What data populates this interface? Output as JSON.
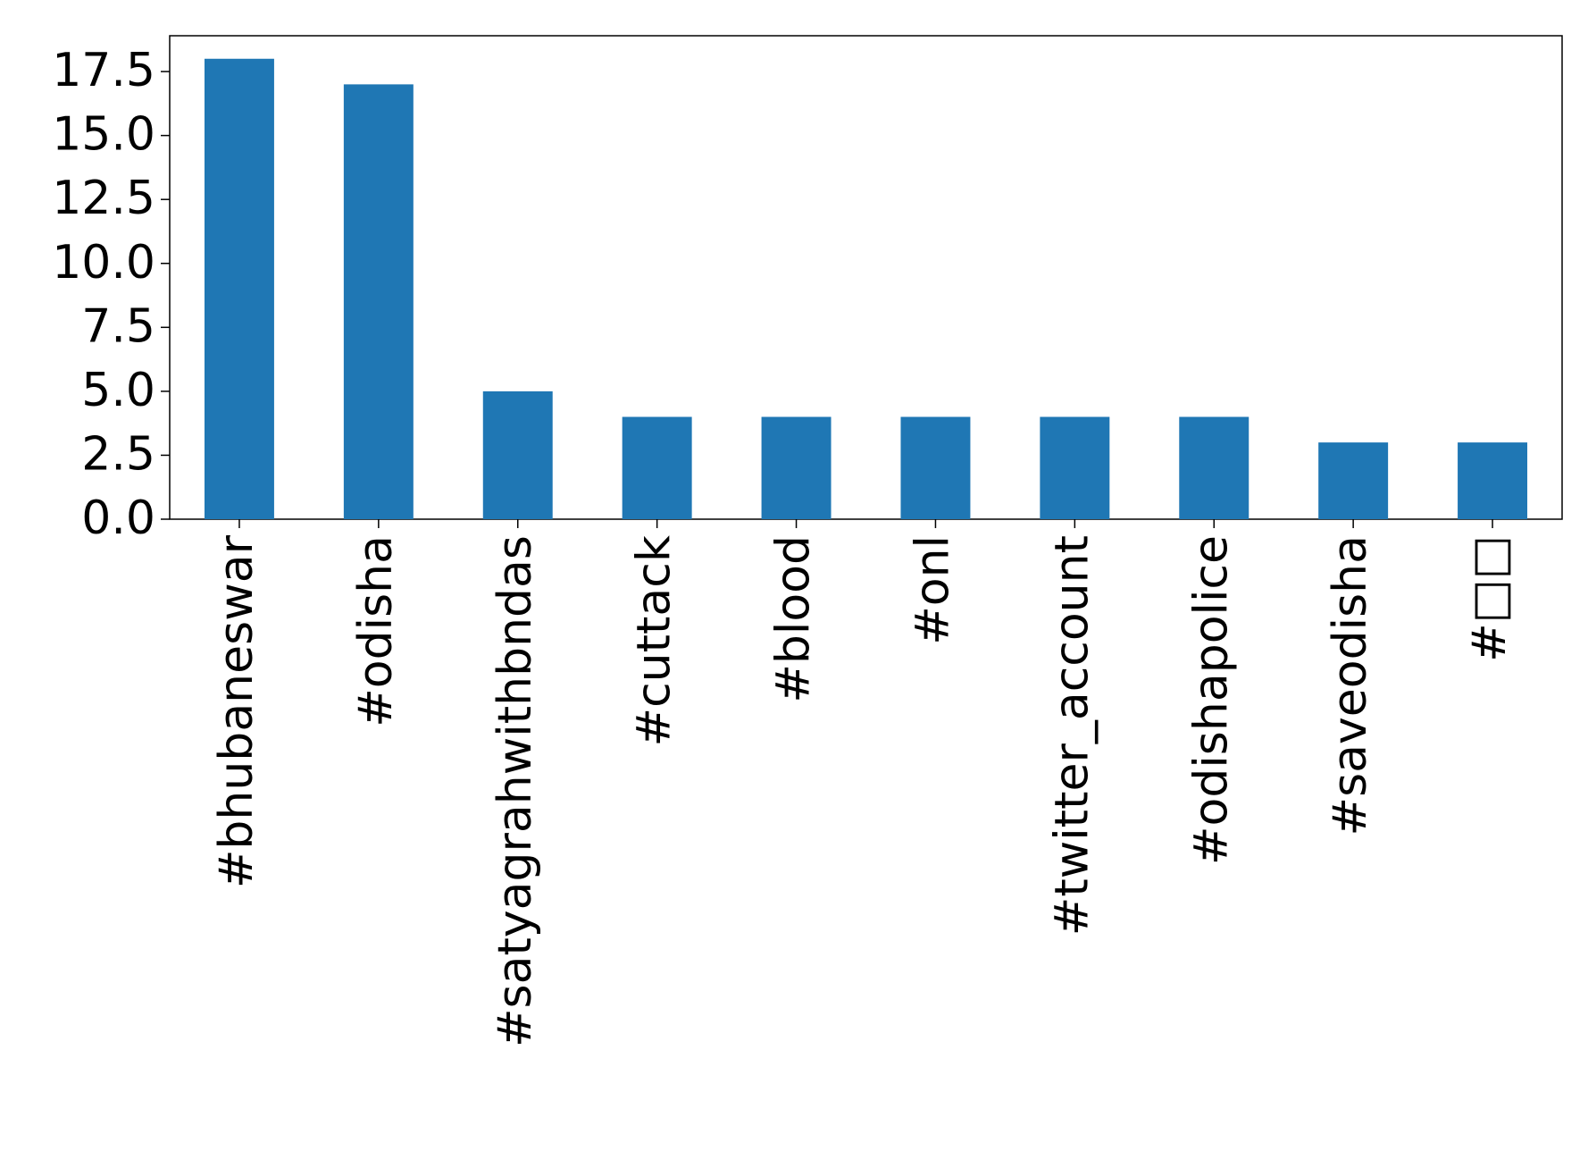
{
  "chart_data": {
    "type": "bar",
    "categories": [
      "#bhubaneswar",
      "#odisha",
      "#satyagrahwithbndas",
      "#cuttack",
      "#blood",
      "#onl",
      "#twitter_account",
      "#odishapolice",
      "#saveodisha",
      "#□□"
    ],
    "values": [
      18,
      17,
      5,
      4,
      4,
      4,
      4,
      4,
      3,
      3
    ],
    "color": "#1f77b4",
    "ylim": [
      0,
      18.9
    ],
    "yticks": [
      {
        "value": 0,
        "label": "0.0"
      },
      2.5,
      {
        "value": 5,
        "label": "5.0"
      },
      7.5,
      {
        "value": 10,
        "label": "10.0"
      },
      12.5,
      {
        "value": 15,
        "label": "15.0"
      },
      17.5
    ]
  }
}
